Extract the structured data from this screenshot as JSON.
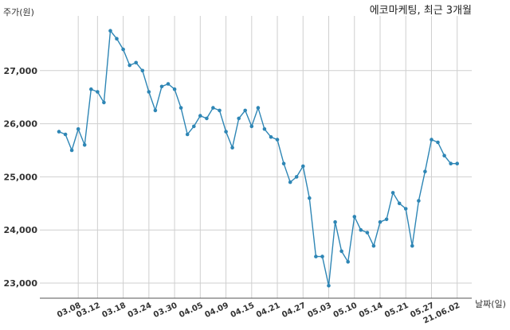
{
  "chart_data": {
    "type": "line",
    "title": "에코마케팅, 최근 3개월",
    "ylabel": "주가(원)",
    "xlabel": "날짜(일)",
    "ylim": [
      22700,
      28000
    ],
    "yticks": [
      23000,
      24000,
      25000,
      26000,
      27000
    ],
    "ytick_labels": [
      "23,000",
      "24,000",
      "25,000",
      "26,000",
      "27,000"
    ],
    "xtick_labels": [
      "03.08",
      "03.12",
      "03.18",
      "03.24",
      "03.30",
      "04.05",
      "04.09",
      "04.15",
      "04.21",
      "04.27",
      "05.03",
      "05.10",
      "05.14",
      "05.21",
      "05.27",
      "21.06.02"
    ],
    "xtick_index": [
      3,
      6,
      10,
      14,
      18,
      22,
      26,
      30,
      34,
      38,
      42,
      46,
      50,
      54,
      58,
      62
    ],
    "grid": true,
    "color": "#2e86b5",
    "series": [
      {
        "values": [
          25850,
          25800,
          25500,
          25900,
          25600,
          26650,
          26600,
          26400,
          27750,
          27600,
          27400,
          27100,
          27150,
          27000,
          26600,
          26250,
          26700,
          26750,
          26650,
          26300,
          25800,
          25950,
          26150,
          26100,
          26300,
          26250,
          25850,
          25550,
          26100,
          26250,
          25950,
          26300,
          25900,
          25750,
          25700,
          25250,
          24900,
          25000,
          25200,
          24600,
          23500,
          23500,
          22950,
          24150,
          23600,
          23400,
          24250,
          24000,
          23950,
          23700,
          24150,
          24200,
          24700,
          24500,
          24400,
          23700,
          24550,
          25100,
          25700,
          25650,
          25400,
          25250,
          25250
        ]
      }
    ]
  }
}
